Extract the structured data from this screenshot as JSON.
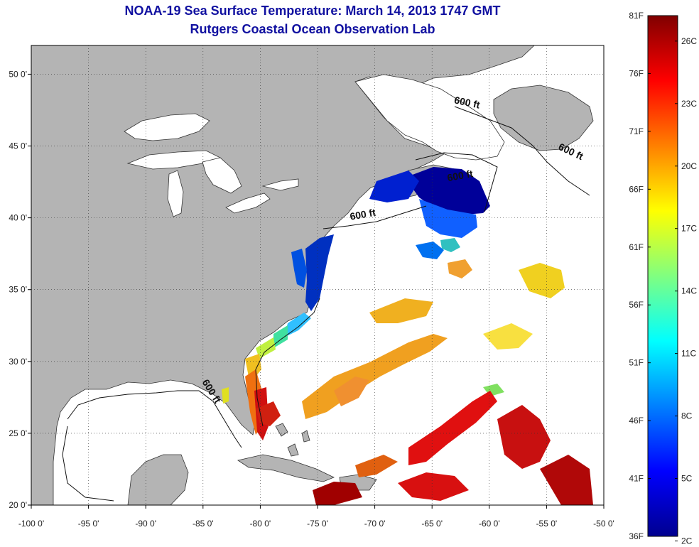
{
  "header": {
    "title": "NOAA-19 Sea Surface Temperature:  March 14, 2013 1747 GMT",
    "subtitle": "Rutgers Coastal Ocean Observation Lab"
  },
  "map": {
    "lon_range": [
      -100,
      -50
    ],
    "lat_range": [
      20,
      52
    ],
    "lon_ticks": [
      -100,
      -95,
      -90,
      -85,
      -80,
      -75,
      -70,
      -65,
      -60,
      -55,
      -50
    ],
    "lon_tick_labels": [
      "-100 0'",
      "-95 0'",
      "-90 0'",
      "-85 0'",
      "-80 0'",
      "-75 0'",
      "-70 0'",
      "-65 0'",
      "-60 0'",
      "-55 0'",
      "-50 0'"
    ],
    "lat_ticks": [
      20,
      25,
      30,
      35,
      40,
      45,
      50
    ],
    "lat_tick_labels": [
      "20 0'",
      "25 0'",
      "30 0'",
      "35 0'",
      "40 0'",
      "45 0'",
      "50 0'"
    ],
    "grid": true,
    "land_color": "#b4b4b4",
    "isobath_labels": [
      {
        "text": "600 ft",
        "lon": -62.0,
        "lat": 47.8,
        "rotate": 12
      },
      {
        "text": "600 ft",
        "lon": -53.0,
        "lat": 44.4,
        "rotate": 25
      },
      {
        "text": "600 ft",
        "lon": -62.5,
        "lat": 42.7,
        "rotate": -10
      },
      {
        "text": "600 ft",
        "lon": -71.0,
        "lat": 40.0,
        "rotate": -10
      },
      {
        "text": "600 ft",
        "lon": -84.5,
        "lat": 27.8,
        "rotate": 58
      }
    ]
  },
  "colorbar": {
    "f_labels": [
      "81F",
      "76F",
      "71F",
      "66F",
      "61F",
      "56F",
      "51F",
      "46F",
      "41F",
      "36F"
    ],
    "c_labels": [
      "26C",
      "23C",
      "20C",
      "17C",
      "14C",
      "11C",
      "8C",
      "5C",
      "2C"
    ],
    "colors": [
      "#00008f",
      "#0000ff",
      "#0080ff",
      "#00ffff",
      "#80ff80",
      "#ffff00",
      "#ff8000",
      "#ff0000",
      "#800000"
    ]
  }
}
